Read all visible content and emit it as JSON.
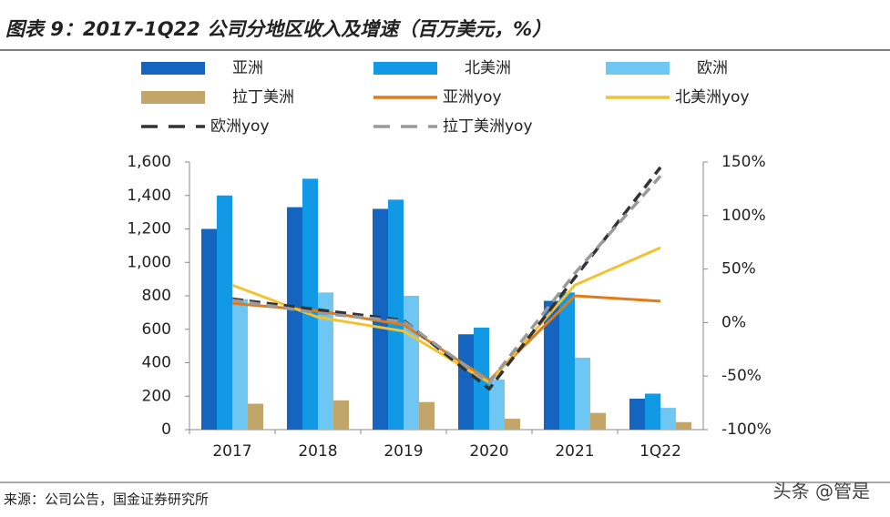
{
  "chart_data": {
    "type": "bar",
    "title": "图表 9：2017-1Q22 公司分地区收入及增速（百万美元，%）",
    "source": "来源：公司公告，国金证券研究所",
    "watermark": "头条 @管是",
    "categories": [
      "2017",
      "2018",
      "2019",
      "2020",
      "2021",
      "1Q22"
    ],
    "series": [
      {
        "name": "亚洲",
        "color": "#1565c0",
        "values": [
          1200,
          1330,
          1320,
          570,
          770,
          185
        ]
      },
      {
        "name": "北美洲",
        "color": "#1199e6",
        "values": [
          1400,
          1500,
          1375,
          610,
          820,
          215
        ]
      },
      {
        "name": "欧洲",
        "color": "#6ec6f3",
        "values": [
          780,
          820,
          800,
          300,
          430,
          130
        ]
      },
      {
        "name": "拉丁美洲",
        "color": "#c2a569",
        "values": [
          155,
          175,
          165,
          65,
          100,
          45
        ]
      },
      {
        "name": "亚洲yoy",
        "color": "#e07b17",
        "axis": "y2",
        "dashed": false,
        "values": [
          18,
          11,
          -2,
          -54,
          25,
          20
        ]
      },
      {
        "name": "北美洲yoy",
        "color": "#f2c232",
        "axis": "y2",
        "dashed": false,
        "values": [
          35,
          5,
          -8,
          -56,
          35,
          70
        ]
      },
      {
        "name": "欧洲yoy",
        "color": "#333333",
        "axis": "y2",
        "dashed": true,
        "values": [
          22,
          12,
          2,
          -62,
          42,
          145
        ]
      },
      {
        "name": "拉丁美洲yoy",
        "color": "#9a9a9a",
        "axis": "y2",
        "dashed": true,
        "values": [
          21,
          9,
          1,
          -56,
          46,
          137
        ]
      }
    ],
    "ylim": [
      0,
      1600
    ],
    "yticks": [
      0,
      200,
      400,
      600,
      800,
      {
        "value": 1000,
        "label": "1,000"
      },
      {
        "value": 1200,
        "label": "1,200"
      },
      {
        "value": 1400,
        "label": "1,400"
      },
      {
        "value": 1600,
        "label": "1,600"
      }
    ],
    "y2lim": [
      -100,
      150
    ],
    "y2ticks": [
      {
        "value": -100,
        "label": "-100%"
      },
      {
        "value": -50,
        "label": "-50%"
      },
      {
        "value": 0,
        "label": "0%"
      },
      {
        "value": 50,
        "label": "50%"
      },
      {
        "value": 100,
        "label": "100%"
      },
      {
        "value": 150,
        "label": "150%"
      }
    ],
    "grid": false
  }
}
